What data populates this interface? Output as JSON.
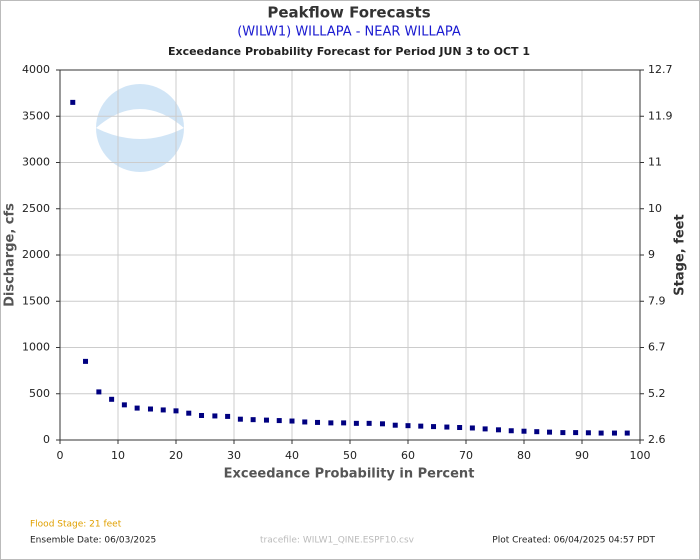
{
  "chart_data": {
    "type": "scatter",
    "title": "Peakflow Forecasts",
    "subtitle": "(WILW1) WILLAPA - NEAR WILLAPA",
    "caption": "Exceedance Probability Forecast for Period JUN 3 to OCT 1",
    "x_label": "Exceedance Probability in Percent",
    "y_label": "Discharge, cfs",
    "y2_label": "Stage, feet",
    "xlim": [
      0,
      100
    ],
    "xticks": [
      0,
      10,
      20,
      30,
      40,
      50,
      60,
      70,
      80,
      90,
      100
    ],
    "ylim": [
      0,
      4000
    ],
    "yticks": [
      0,
      500,
      1000,
      1500,
      2000,
      2500,
      3000,
      3500,
      4000
    ],
    "y2lim": [
      2.6,
      12.7
    ],
    "y2ticks": [
      2.6,
      5.2,
      6.7,
      7.9,
      9.0,
      10.0,
      11.0,
      11.9,
      12.7
    ],
    "grid": true,
    "color": "#000080",
    "series": [
      {
        "name": "Discharge",
        "color": "#000080",
        "x": [
          2.2,
          4.4,
          6.7,
          8.9,
          11.1,
          13.3,
          15.6,
          17.8,
          20.0,
          22.2,
          24.4,
          26.7,
          28.9,
          31.1,
          33.3,
          35.6,
          37.8,
          40.0,
          42.2,
          44.4,
          46.7,
          48.9,
          51.1,
          53.3,
          55.6,
          57.8,
          60.0,
          62.2,
          64.4,
          66.7,
          68.9,
          71.1,
          73.3,
          75.6,
          77.8,
          80.0,
          82.2,
          84.4,
          86.7,
          88.9,
          91.1,
          93.3,
          95.6,
          97.8
        ],
        "values": [
          3650,
          850,
          520,
          440,
          380,
          345,
          335,
          325,
          315,
          290,
          265,
          260,
          255,
          225,
          220,
          215,
          210,
          205,
          195,
          190,
          185,
          185,
          180,
          180,
          175,
          160,
          155,
          150,
          145,
          140,
          135,
          130,
          120,
          110,
          100,
          95,
          90,
          85,
          80,
          80,
          78,
          75,
          75,
          75
        ]
      }
    ],
    "footer": {
      "flood_stage": "Flood Stage: 21 feet",
      "ensemble_date": "Ensemble Date: 06/03/2025",
      "tracefile": "tracefile: WILW1_QINE.ESPF10.csv",
      "plot_created": "Plot Created: 06/04/2025 04:57 PDT"
    }
  }
}
